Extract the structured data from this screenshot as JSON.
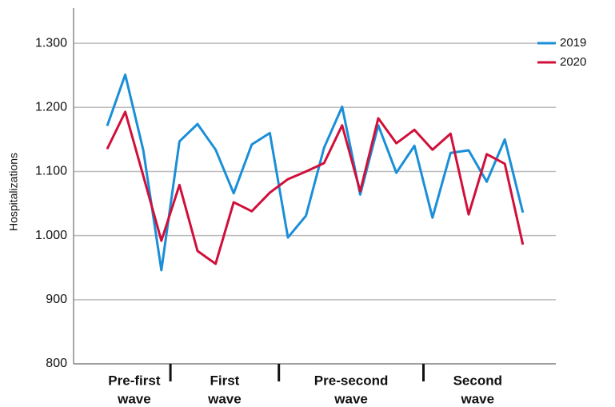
{
  "chart_data": {
    "type": "line",
    "y_label": "Hospitalizations",
    "categories": [
      null,
      null,
      null,
      null,
      null,
      null,
      null,
      null,
      null,
      null,
      null,
      null,
      null,
      null,
      null,
      null,
      null,
      null,
      null,
      null,
      null,
      null,
      null,
      null
    ],
    "groups": [
      {
        "label": [
          "Pre-first",
          "wave"
        ],
        "size": 4
      },
      {
        "label": [
          "First",
          "wave"
        ],
        "size": 6
      },
      {
        "label": [
          "Pre-second",
          "wave"
        ],
        "size": 8
      },
      {
        "label": [
          "Second",
          "wave"
        ],
        "size": 6
      }
    ],
    "series": [
      {
        "name": "2019",
        "color": "#1a8fd8",
        "values": [
          1171,
          1251,
          1133,
          946,
          1147,
          1174,
          1134,
          1066,
          1142,
          1160,
          997,
          1031,
          1137,
          1201,
          1064,
          1172,
          1098,
          1140,
          1028,
          1129,
          1133,
          1084,
          1150,
          1036
        ]
      },
      {
        "name": "2020",
        "color": "#d0103a",
        "values": [
          1135,
          1193,
          1093,
          992,
          1079,
          976,
          956,
          1052,
          1038,
          1067,
          1088,
          1100,
          1113,
          1172,
          1069,
          1183,
          1144,
          1165,
          1134,
          1159,
          1033,
          1127,
          1112,
          986
        ]
      }
    ],
    "ylim": [
      800,
      1355
    ],
    "yticks": [
      800,
      900,
      {
        "value": 1000,
        "label": "1.000"
      },
      {
        "value": 1100,
        "label": "1.100"
      },
      {
        "value": 1200,
        "label": "1.200"
      },
      {
        "value": 1300,
        "label": "1.300"
      }
    ],
    "grid": true,
    "legend": "top-right"
  }
}
